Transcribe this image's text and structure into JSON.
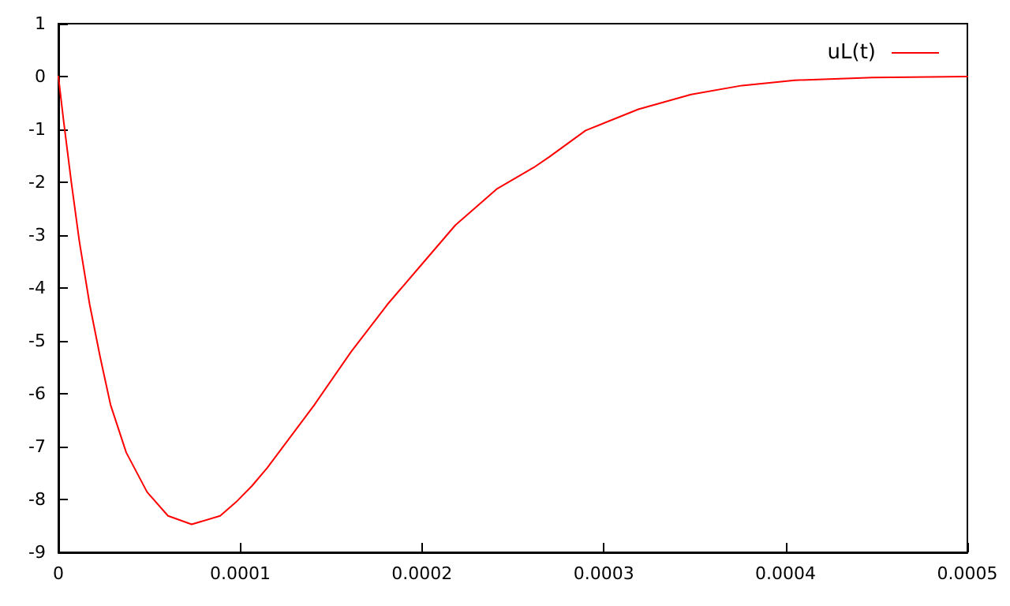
{
  "chart_data": {
    "type": "line",
    "xlim": [
      0,
      0.0005
    ],
    "xticks": [
      0,
      0.0001,
      0.0002,
      0.0003,
      0.0004,
      0.0005
    ],
    "ylim": [
      -9,
      1
    ],
    "yticks": [
      -9,
      -8,
      -7,
      -6,
      -5,
      -4,
      -3,
      -2,
      -1,
      0,
      1
    ],
    "grid": false,
    "legend": "top right",
    "marker": "none",
    "line_style": "solid",
    "series": [
      {
        "name": "uL(t)",
        "color": "#ff0000",
        "x": [
          0,
          2.8e-06,
          7.2e-06,
          1.15e-05,
          1.72e-05,
          2.3e-05,
          2.87e-05,
          3.73e-05,
          4.88e-05,
          6.03e-05,
          7.33e-05,
          8.9e-05,
          9.77e-05,
          0.0001063,
          0.0001149,
          0.0001408,
          0.0001609,
          0.000181,
          0.0001997,
          0.0002184,
          0.0002414,
          0.0002615,
          0.00027,
          0.00029,
          0.000319,
          0.000348,
          0.000376,
          0.000405,
          0.000448,
          0.0005
        ],
        "values": [
          0,
          -0.82,
          -2.02,
          -3.11,
          -4.31,
          -5.31,
          -6.21,
          -7.11,
          -7.86,
          -8.31,
          -8.47,
          -8.31,
          -8.05,
          -7.75,
          -7.4,
          -6.21,
          -5.21,
          -4.31,
          -3.56,
          -2.81,
          -2.12,
          -1.72,
          -1.52,
          -1.02,
          -0.62,
          -0.34,
          -0.17,
          -0.07,
          -0.02,
          0
        ]
      }
    ]
  }
}
